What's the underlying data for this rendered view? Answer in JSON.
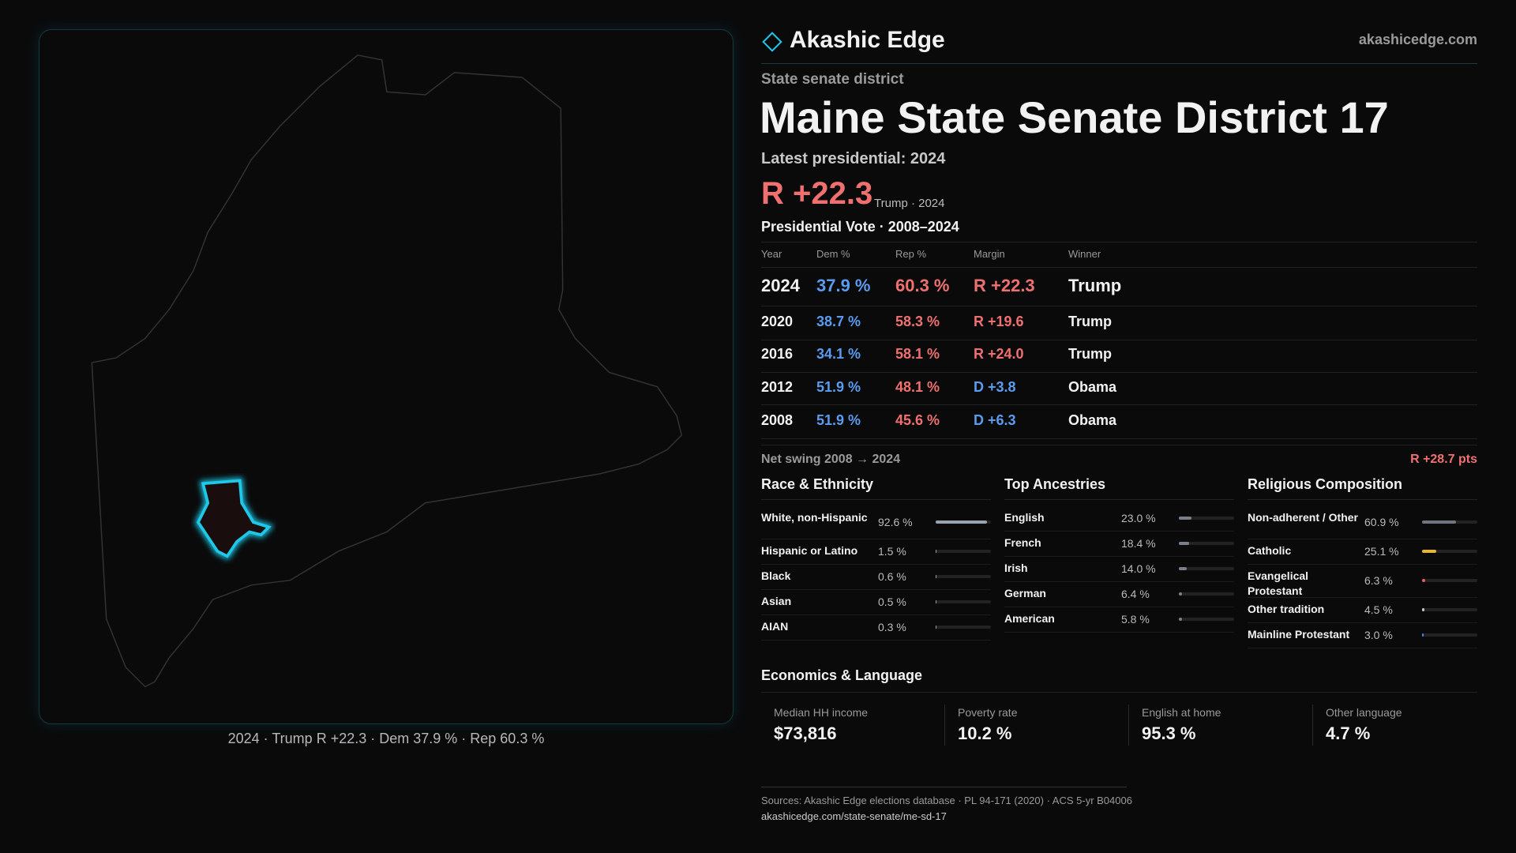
{
  "header": {
    "brand": "Akashic Edge",
    "site": "akashicedge.com"
  },
  "district": {
    "kind": "State senate district",
    "title": "Maine State Senate District 17",
    "latest": "Latest presidential: 2024",
    "margin": "R +22.3",
    "margin_note": "Trump · 2024"
  },
  "map": {
    "caption": "2024 · Trump R +22.3 · Dem 37.9 % · Rep 60.3 %"
  },
  "table": {
    "title": "Presidential Vote · 2008–2024",
    "columns": [
      "Year",
      "Dem %",
      "Rep %",
      "Margin",
      "Winner"
    ],
    "rows": [
      [
        "2024",
        "37.9 %",
        "60.3 %",
        "R +22.3",
        "Trump"
      ],
      [
        "2020",
        "38.7 %",
        "58.3 %",
        "R +19.6",
        "Trump"
      ],
      [
        "2016",
        "34.1 %",
        "58.1 %",
        "R +24.0",
        "Trump"
      ],
      [
        "2012",
        "51.9 %",
        "48.1 %",
        "D +3.8",
        "Obama"
      ],
      [
        "2008",
        "51.9 %",
        "45.6 %",
        "D +6.3",
        "Obama"
      ]
    ]
  },
  "swing": {
    "label": "Net swing 2008 → 2024",
    "value": "R +28.7 pts"
  },
  "race": {
    "title": "Race & Ethnicity",
    "color": "#9aa3b0",
    "rows": [
      {
        "label": "White, non-Hispanic",
        "value": 92.6,
        "value_label": "92.6 %"
      },
      {
        "label": "Hispanic or Latino",
        "value": 1.5,
        "value_label": "1.5 %"
      },
      {
        "label": "Black",
        "value": 0.6,
        "value_label": "0.6 %"
      },
      {
        "label": "Asian",
        "value": 0.5,
        "value_label": "0.5 %"
      },
      {
        "label": "AIAN",
        "value": 0.3,
        "value_label": "0.3 %"
      }
    ]
  },
  "ancestry": {
    "title": "Top Ancestries",
    "color": "#7a818c",
    "rows": [
      {
        "label": "English",
        "value": 23.0,
        "value_label": "23.0 %"
      },
      {
        "label": "French",
        "value": 18.4,
        "value_label": "18.4 %"
      },
      {
        "label": "Irish",
        "value": 14.0,
        "value_label": "14.0 %"
      },
      {
        "label": "German",
        "value": 6.4,
        "value_label": "6.4 %"
      },
      {
        "label": "American",
        "value": 5.8,
        "value_label": "5.8 %"
      }
    ]
  },
  "religion": {
    "title": "Religious Composition",
    "rows": [
      {
        "label": "Non-adherent / Other",
        "value": 60.9,
        "value_label": "60.9 %",
        "color": "#6f7680"
      },
      {
        "label": "Catholic",
        "value": 25.1,
        "value_label": "25.1 %",
        "color": "#e7b53a"
      },
      {
        "label": "Evangelical Protestant",
        "value": 6.3,
        "value_label": "6.3 %",
        "color": "#e46060"
      },
      {
        "label": "Other tradition",
        "value": 4.5,
        "value_label": "4.5 %",
        "color": "#c8c8c8"
      },
      {
        "label": "Mainline Protestant",
        "value": 3.0,
        "value_label": "3.0 %",
        "color": "#4a8be0"
      }
    ]
  },
  "economics": {
    "title": "Economics & Language",
    "cards": [
      {
        "label": "Median HH income",
        "value": "$73,816"
      },
      {
        "label": "Poverty rate",
        "value": "10.2 %"
      },
      {
        "label": "English at home",
        "value": "95.3 %"
      },
      {
        "label": "Other language",
        "value": "4.7 %"
      }
    ]
  },
  "footer": {
    "sources": "Sources: Akashic Edge elections database · PL 94-171 (2020) · ACS 5-yr B04006",
    "url": "akashicedge.com/state-senate/me-sd-17"
  }
}
